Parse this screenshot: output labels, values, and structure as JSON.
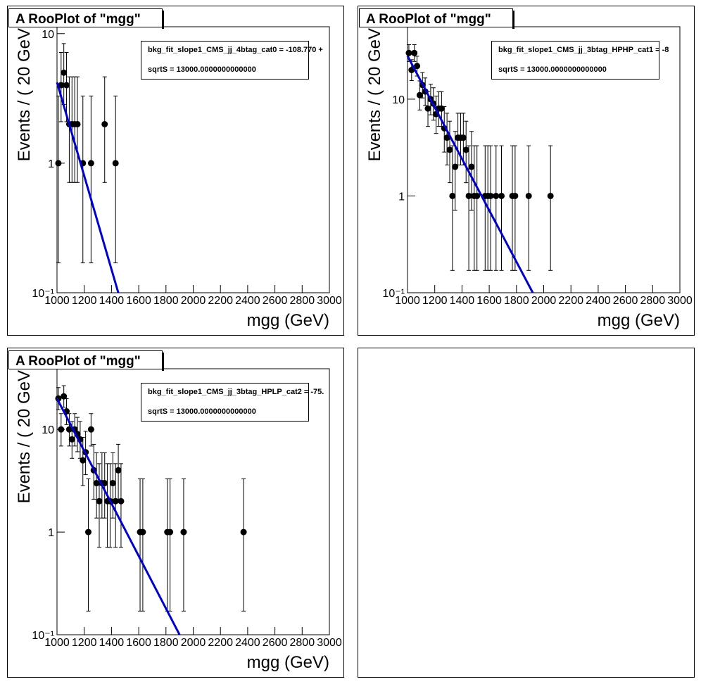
{
  "chart_data": [
    {
      "type": "scatter",
      "title": "A RooPlot of \"mgg\"",
      "xlabel": "mgg (GeV)",
      "ylabel": "Events / ( 20 GeV",
      "legend_text": [
        "bkg_fit_slope1_CMS_jj_4btag_cat0 = -108.770 +",
        "sqrtS =  13000.0000000000000"
      ],
      "log_y": true,
      "xlim": [
        1000,
        3000
      ],
      "ylim": [
        0.1,
        11.3
      ],
      "xticks": [
        1000,
        1200,
        1400,
        1600,
        1800,
        2000,
        2200,
        2400,
        2600,
        2800,
        3000
      ],
      "yticks": [
        {
          "value": 0.1,
          "label": "10⁻¹"
        },
        1,
        10
      ],
      "series": [
        {
          "style": "points",
          "color": "#000000",
          "x": [
            1010,
            1030,
            1050,
            1070,
            1090,
            1110,
            1130,
            1150,
            1190,
            1250,
            1350,
            1430
          ],
          "values": [
            1,
            4,
            5,
            4,
            2,
            2,
            2,
            2,
            1,
            1,
            2,
            1
          ],
          "yerr_low": [
            0.83,
            1.91,
            2.16,
            1.91,
            1.29,
            1.29,
            1.29,
            1.29,
            0.83,
            0.83,
            1.29,
            0.83
          ],
          "yerr_high": [
            2.3,
            3.16,
            3.38,
            3.16,
            2.64,
            2.64,
            2.64,
            2.64,
            2.3,
            2.3,
            2.64,
            2.3
          ]
        },
        {
          "style": "line",
          "color": "#0000cc",
          "x": [
            1000,
            1450
          ],
          "values": [
            4.2,
            0.1
          ]
        }
      ]
    },
    {
      "type": "scatter",
      "title": "A RooPlot of \"mgg\"",
      "xlabel": "mgg (GeV)",
      "ylabel": "Events / ( 20 GeV",
      "legend_text": [
        "bkg_fit_slope1_CMS_jj_3btag_HPHP_cat1 = -8",
        "sqrtS =  13000.0000000000000"
      ],
      "log_y": true,
      "xlim": [
        1000,
        3000
      ],
      "ylim": [
        0.1,
        56
      ],
      "xticks": [
        1000,
        1200,
        1400,
        1600,
        1800,
        2000,
        2200,
        2400,
        2600,
        2800,
        3000
      ],
      "yticks": [
        {
          "value": 0.1,
          "label": "10⁻¹"
        },
        1,
        10
      ],
      "series": [
        {
          "style": "points",
          "color": "#000000",
          "x": [
            1010,
            1030,
            1050,
            1070,
            1090,
            1110,
            1130,
            1150,
            1170,
            1190,
            1210,
            1230,
            1250,
            1270,
            1290,
            1310,
            1330,
            1350,
            1370,
            1390,
            1410,
            1430,
            1450,
            1470,
            1490,
            1510,
            1570,
            1590,
            1610,
            1650,
            1690,
            1770,
            1790,
            1890,
            2050
          ],
          "values": [
            30,
            20,
            30,
            22,
            11,
            14,
            12,
            8,
            10,
            9,
            7,
            8,
            8,
            5,
            4,
            3,
            1,
            2,
            4,
            4,
            4,
            3,
            1,
            2,
            1,
            1,
            1,
            1,
            1,
            1,
            1,
            1,
            1,
            1,
            1
          ],
          "yerr_low": [
            5.47,
            4.44,
            5.47,
            4.66,
            3.27,
            3.71,
            3.42,
            2.77,
            3.11,
            2.94,
            2.58,
            2.77,
            2.77,
            2.16,
            1.91,
            1.63,
            0.83,
            1.29,
            1.91,
            1.91,
            1.91,
            1.63,
            0.83,
            1.29,
            0.83,
            0.83,
            0.83,
            0.83,
            0.83,
            0.83,
            0.83,
            0.83,
            0.83,
            0.83,
            0.83
          ],
          "yerr_high": [
            6.55,
            5.56,
            6.55,
            5.78,
            4.42,
            4.83,
            4.56,
            3.94,
            4.26,
            4.11,
            3.77,
            3.94,
            3.94,
            3.38,
            3.16,
            2.92,
            2.3,
            2.64,
            3.16,
            3.16,
            3.16,
            2.92,
            2.3,
            2.64,
            2.3,
            2.3,
            2.3,
            2.3,
            2.3,
            2.3,
            2.3,
            2.3,
            2.3,
            2.3,
            2.3
          ]
        },
        {
          "style": "line",
          "color": "#0000cc",
          "x": [
            1000,
            1920
          ],
          "values": [
            28,
            0.1
          ]
        }
      ]
    },
    {
      "type": "scatter",
      "title": "A RooPlot of \"mgg\"",
      "xlabel": "mgg (GeV)",
      "ylabel": "Events / ( 20 GeV",
      "legend_text": [
        "bkg_fit_slope1_CMS_jj_3btag_HPLP_cat2 = -75.",
        "sqrtS =  13000.0000000000000"
      ],
      "log_y": true,
      "xlim": [
        1000,
        3000
      ],
      "ylim": [
        0.1,
        39
      ],
      "xticks": [
        1000,
        1200,
        1400,
        1600,
        1800,
        2000,
        2200,
        2400,
        2600,
        2800,
        3000
      ],
      "yticks": [
        {
          "value": 0.1,
          "label": "10⁻¹"
        },
        1,
        10
      ],
      "series": [
        {
          "style": "points",
          "color": "#000000",
          "x": [
            1010,
            1030,
            1050,
            1070,
            1090,
            1110,
            1130,
            1150,
            1170,
            1190,
            1210,
            1230,
            1250,
            1270,
            1290,
            1310,
            1330,
            1350,
            1370,
            1390,
            1410,
            1430,
            1450,
            1470,
            1610,
            1630,
            1810,
            1830,
            1930,
            2370
          ],
          "values": [
            20,
            10,
            21,
            15,
            10,
            8,
            10,
            9,
            8,
            5,
            6,
            1,
            10,
            4,
            3,
            2,
            3,
            3,
            2,
            2,
            3,
            2,
            4,
            2,
            1,
            1,
            1,
            1,
            1,
            1
          ],
          "yerr_low": [
            4.44,
            3.11,
            4.55,
            3.84,
            3.11,
            2.77,
            3.11,
            2.94,
            2.77,
            2.16,
            2.38,
            0.83,
            3.11,
            1.91,
            1.63,
            1.29,
            1.63,
            1.63,
            1.29,
            1.29,
            1.63,
            1.29,
            1.91,
            1.29,
            0.83,
            0.83,
            0.83,
            0.83,
            0.83,
            0.83
          ],
          "yerr_high": [
            5.56,
            4.26,
            5.67,
            4.96,
            4.26,
            3.94,
            4.26,
            4.11,
            3.94,
            3.38,
            3.58,
            2.3,
            4.26,
            3.16,
            2.92,
            2.64,
            2.92,
            2.92,
            2.64,
            2.64,
            2.92,
            2.64,
            3.16,
            2.64,
            2.3,
            2.3,
            2.3,
            2.3,
            2.3,
            2.3
          ]
        },
        {
          "style": "line",
          "color": "#0000cc",
          "x": [
            1000,
            1900
          ],
          "values": [
            20,
            0.1
          ]
        }
      ]
    }
  ]
}
